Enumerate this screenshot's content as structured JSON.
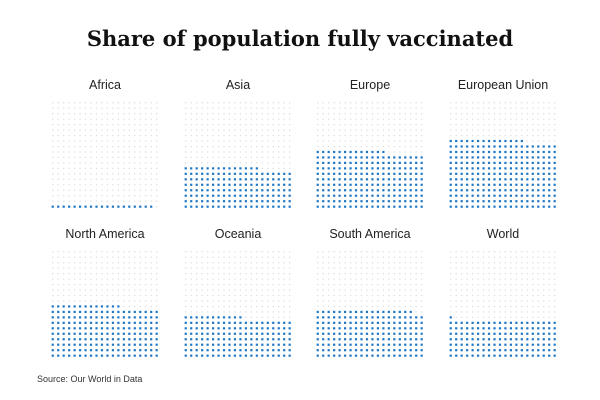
{
  "colors": {
    "filled": "#1f77c4",
    "empty": "#d9d9d9"
  },
  "chart_data": {
    "type": "waffle",
    "title": "Share of population fully vaccinated",
    "grid": {
      "rows": 20,
      "cols": 20,
      "fill_order": "bottom-up, left-to-right"
    },
    "unit": "percent",
    "panels": [
      {
        "label": "Africa",
        "value": 4.75
      },
      {
        "label": "Asia",
        "value": 38.5
      },
      {
        "label": "Europe",
        "value": 53.25
      },
      {
        "label": "European Union",
        "value": 63.5
      },
      {
        "label": "North America",
        "value": 48.25
      },
      {
        "label": "Oceania",
        "value": 37.75
      },
      {
        "label": "South America",
        "value": 44.5
      },
      {
        "label": "World",
        "value": 35.25
      }
    ],
    "source": "Source: Our World in Data"
  }
}
